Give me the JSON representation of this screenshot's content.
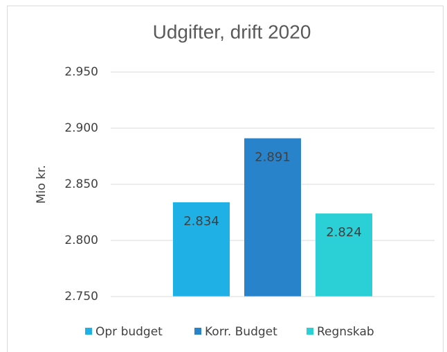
{
  "chart_data": {
    "type": "bar",
    "title": "Udgifter, drift 2020",
    "y_label": "Mio kr.",
    "categories": [
      null
    ],
    "series": [
      {
        "name": "Opr budget",
        "color": "#1fb0e6",
        "values": [
          2834
        ],
        "value_labels": [
          "2.834"
        ]
      },
      {
        "name": "Korr. Budget",
        "color": "#2883cb",
        "values": [
          2891
        ],
        "value_labels": [
          "2.891"
        ]
      },
      {
        "name": "Regnskab",
        "color": "#2bcfd6",
        "values": [
          2824
        ],
        "value_labels": [
          "2.824"
        ]
      }
    ],
    "ylim": [
      2750,
      2950
    ],
    "yticks": [
      {
        "value": 2750,
        "label": "2.750"
      },
      {
        "value": 2800,
        "label": "2.800"
      },
      {
        "value": 2850,
        "label": "2.850"
      },
      {
        "value": 2900,
        "label": "2.900"
      },
      {
        "value": 2950,
        "label": "2.950"
      }
    ],
    "grid": true,
    "legend": "bottom"
  }
}
